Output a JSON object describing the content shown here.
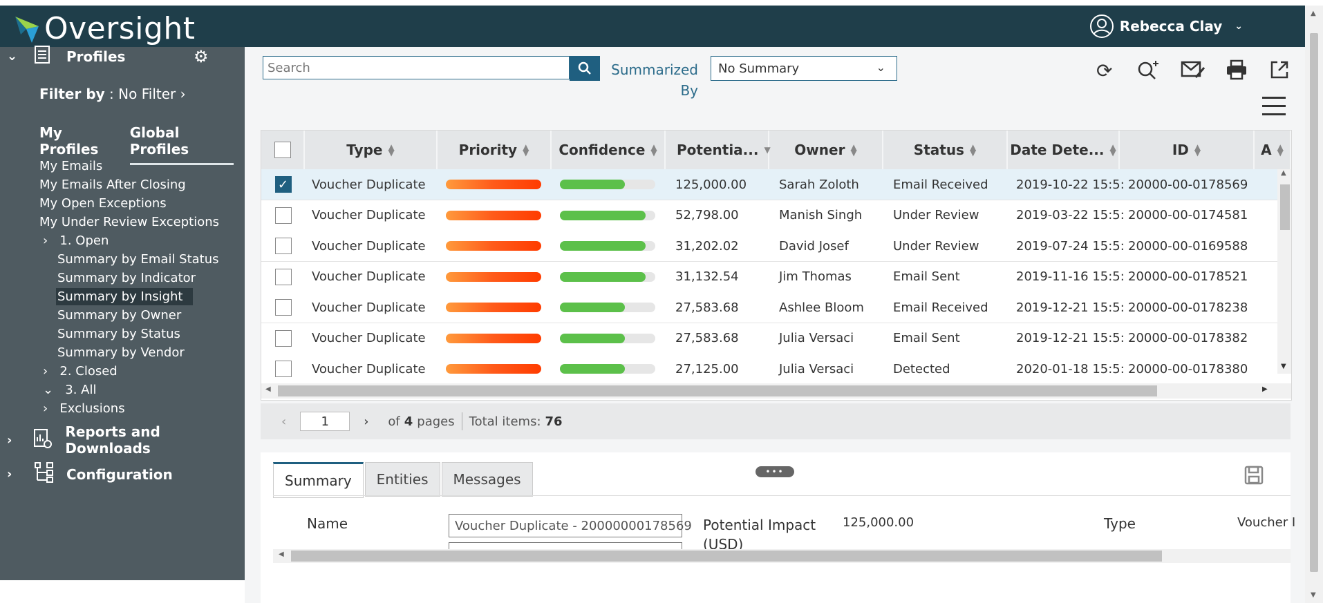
{
  "app": {
    "name": "Oversight",
    "user": "Rebecca Clay"
  },
  "sidebar": {
    "profiles_label": "Profiles",
    "filter_by_label": "Filter by",
    "filter_value": "No Filter",
    "tab_my_profiles": "My Profiles",
    "tab_global_profiles": "Global Profiles",
    "items": [
      "My Emails",
      "My Emails After Closing",
      "My Open Exceptions",
      "My Under Review Exceptions"
    ],
    "open_label": "1. Open",
    "open_children": [
      "Summary by Email Status",
      "Summary by Indicator",
      "Summary by Insight",
      "Summary by Owner",
      "Summary by Status",
      "Summary by Vendor"
    ],
    "selected_item": "Summary by Insight",
    "closed_label": "2. Closed",
    "all_label": "3. All",
    "exclusions_label": "Exclusions",
    "reports_label": "Reports and Downloads",
    "configuration_label": "Configuration"
  },
  "toolbar": {
    "search_placeholder": "Search",
    "summarized_by_label": "Summarized By",
    "summary_select": "No Summary"
  },
  "grid": {
    "columns": [
      "Type",
      "Priority",
      "Confidence",
      "Potentia...",
      "Owner",
      "Status",
      "Date Dete...",
      "ID",
      "A"
    ],
    "rows": [
      {
        "type": "Voucher Duplicate",
        "confidence": 0.68,
        "potential": "125,000.00",
        "owner": "Sarah Zoloth",
        "status": "Email Received",
        "date": "2019-10-22 15:5:",
        "id": "20000-00-0178569",
        "selected": true
      },
      {
        "type": "Voucher Duplicate",
        "confidence": 0.9,
        "potential": "52,798.00",
        "owner": "Manish Singh",
        "status": "Under Review",
        "date": "2019-03-22 15:5:",
        "id": "20000-00-0174581",
        "selected": false
      },
      {
        "type": "Voucher Duplicate",
        "confidence": 0.9,
        "potential": "31,202.02",
        "owner": "David Josef",
        "status": "Under Review",
        "date": "2019-07-24 15:5:",
        "id": "20000-00-0169588",
        "selected": false
      },
      {
        "type": "Voucher Duplicate",
        "confidence": 0.9,
        "potential": "31,132.54",
        "owner": "Jim Thomas",
        "status": "Email Sent",
        "date": "2019-11-16 15:5:",
        "id": "20000-00-0178521",
        "selected": false
      },
      {
        "type": "Voucher Duplicate",
        "confidence": 0.68,
        "potential": "27,583.68",
        "owner": "Ashlee Bloom",
        "status": "Email Received",
        "date": "2019-12-21 15:5:",
        "id": "20000-00-0178238",
        "selected": false
      },
      {
        "type": "Voucher Duplicate",
        "confidence": 0.68,
        "potential": "27,583.68",
        "owner": "Julia Versaci",
        "status": "Email Sent",
        "date": "2019-12-21 15:5:",
        "id": "20000-00-0178382",
        "selected": false
      },
      {
        "type": "Voucher Duplicate",
        "confidence": 0.68,
        "potential": "27,125.00",
        "owner": "Julia Versaci",
        "status": "Detected",
        "date": "2020-01-18 15:5:",
        "id": "20000-00-0178380",
        "selected": false
      }
    ]
  },
  "pager": {
    "page": "1",
    "of_label": "of",
    "total_pages": "4",
    "pages_label": "pages",
    "total_label": "Total items:",
    "total_items": "76"
  },
  "detail": {
    "tabs": [
      "Summary",
      "Entities",
      "Messages"
    ],
    "name_label": "Name",
    "name_value": "Voucher Duplicate - 20000000178569",
    "impact_label": "Potential Impact (USD)",
    "impact_value": "125,000.00",
    "type_label": "Type",
    "type_value": "Voucher I"
  },
  "colors": {
    "header": "#1f3e4a",
    "sidebar": "#4f5b61",
    "accent": "#1f5f80",
    "confidence": "#5cc04a",
    "priority": "#ff5a1a"
  }
}
